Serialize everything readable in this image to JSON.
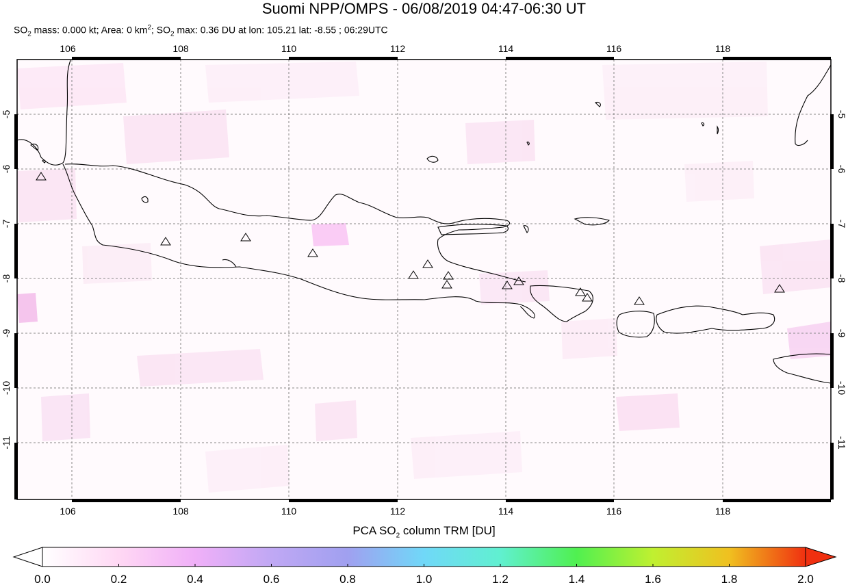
{
  "title": "Suomi NPP/OMPS - 06/08/2019 04:47-06:30 UT",
  "subtitle": {
    "so2_mass": "SO",
    "so2_mass_sub": "2",
    "mass_text": " mass: 0.000 kt; Area: 0 km",
    "area_sup": "2",
    "sep": "; SO",
    "so2_sub": "2",
    "max_text": " max: 0.36 DU at lon: 105.21 lat: -8.55 ; 06:29UTC"
  },
  "map": {
    "lon_ticks": [
      "106",
      "108",
      "110",
      "112",
      "114",
      "116",
      "118"
    ],
    "lat_ticks": [
      "-5",
      "-6",
      "-7",
      "-8",
      "-9",
      "-10",
      "-11"
    ],
    "volcano-marker-count": 16
  },
  "colorbar": {
    "title_pre": "PCA SO",
    "title_sub": "2",
    "title_post": " column TRM [DU]",
    "ticks": [
      "0.0",
      "0.2",
      "0.4",
      "0.6",
      "0.8",
      "1.0",
      "1.2",
      "1.4",
      "1.6",
      "1.8",
      "2.0"
    ],
    "colors": [
      "#ffffff",
      "#ffc8f0",
      "#e0a0f8",
      "#a8a0f0",
      "#80c0f8",
      "#60f0f0",
      "#60f080",
      "#90f040",
      "#f0f030",
      "#f0a020",
      "#f03010"
    ]
  }
}
